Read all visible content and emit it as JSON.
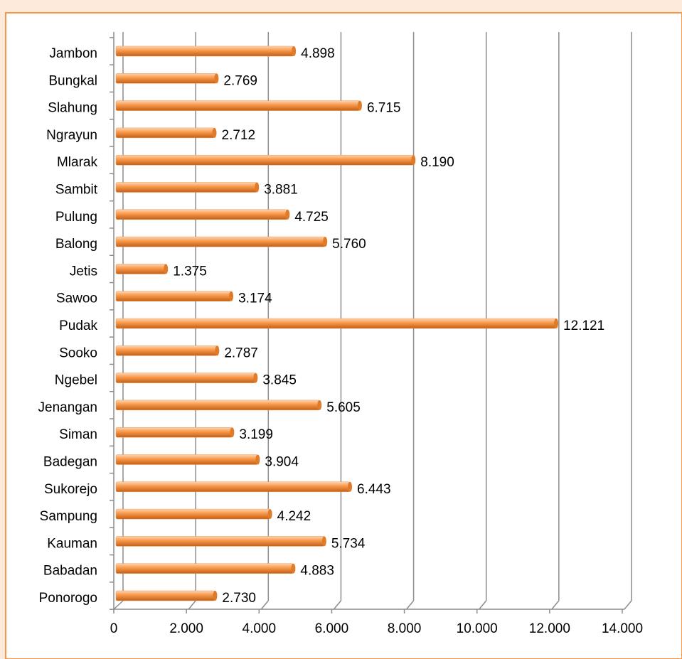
{
  "chart_data": {
    "type": "bar",
    "orientation": "horizontal",
    "categories": [
      "Jambon",
      "Bungkal",
      "Slahung",
      "Ngrayun",
      "Mlarak",
      "Sambit",
      "Pulung",
      "Balong",
      "Jetis",
      "Sawoo",
      "Pudak",
      "Sooko",
      "Ngebel",
      "Jenangan",
      "Siman",
      "Badegan",
      "Sukorejo",
      "Sampung",
      "Kauman",
      "Babadan",
      "Ponorogo"
    ],
    "values": [
      4898,
      2769,
      6715,
      2712,
      8190,
      3881,
      4725,
      5760,
      1375,
      3174,
      12121,
      2787,
      3845,
      5605,
      3199,
      3904,
      6443,
      4242,
      5734,
      4883,
      2730
    ],
    "value_labels": [
      "4.898",
      "2.769",
      "6.715",
      "2.712",
      "8.190",
      "3.881",
      "4.725",
      "5.760",
      "1.375",
      "3.174",
      "12.121",
      "2.787",
      "3.845",
      "5.605",
      "3.199",
      "3.904",
      "6.443",
      "4.242",
      "5.734",
      "4.883",
      "2.730"
    ],
    "color": "#f79646",
    "xlim": [
      0,
      14000
    ],
    "xticks": [
      0,
      {
        "value": 2000,
        "label": "2.000"
      },
      {
        "value": 4000,
        "label": "4.000"
      },
      {
        "value": 6000,
        "label": "6.000"
      },
      {
        "value": 8000,
        "label": "8.000"
      },
      {
        "value": 10000,
        "label": "10.000"
      },
      {
        "value": 12000,
        "label": "12.000"
      },
      {
        "value": 14000,
        "label": "14.000"
      }
    ],
    "grid": true
  }
}
